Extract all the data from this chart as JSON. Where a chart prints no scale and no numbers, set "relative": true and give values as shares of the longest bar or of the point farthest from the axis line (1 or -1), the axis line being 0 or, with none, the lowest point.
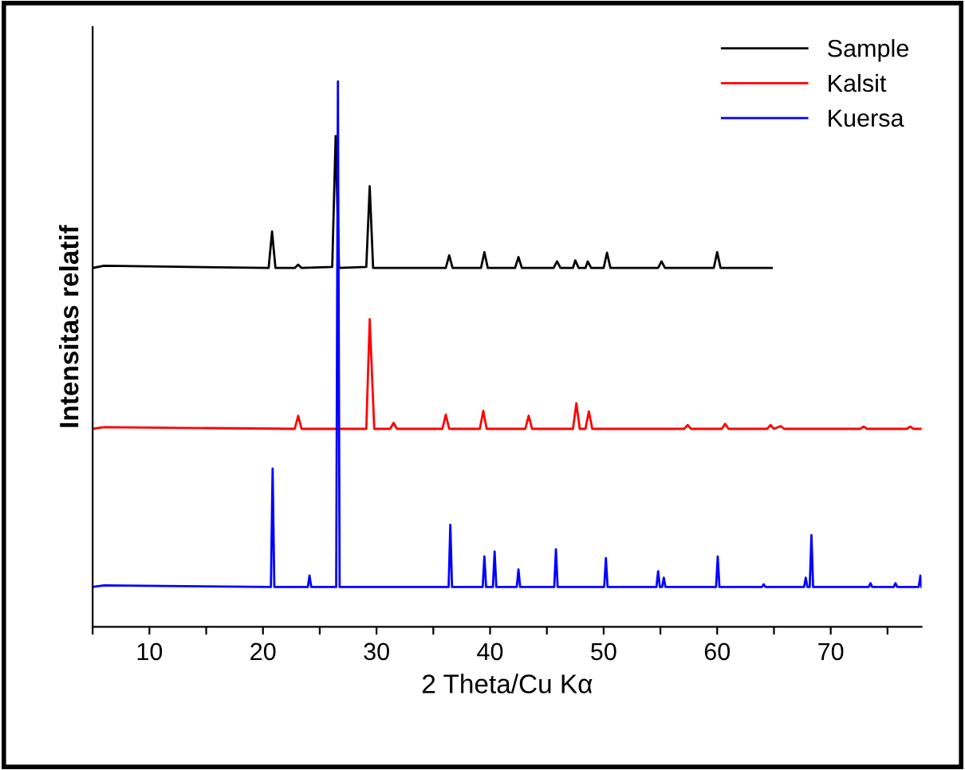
{
  "chart_data": {
    "type": "line",
    "relative": true,
    "xlabel": "2 Theta/Cu Kα",
    "ylabel": "Intensitas relatif",
    "xlim": [
      5,
      78
    ],
    "xticks": [
      {
        "value": 5,
        "label": null
      },
      10,
      {
        "value": 15,
        "label": null
      },
      20,
      {
        "value": 25,
        "label": null
      },
      30,
      {
        "value": 35,
        "label": null
      },
      40,
      {
        "value": 45,
        "label": null
      },
      50,
      {
        "value": 55,
        "label": null
      },
      60,
      {
        "value": 65,
        "label": null
      },
      70,
      {
        "value": 75,
        "label": null
      }
    ],
    "legend": "top right",
    "grid": false,
    "series": [
      {
        "name": "Sample",
        "color": "#000000",
        "x": [
          5,
          6,
          20.5,
          20.8,
          21.1,
          22.8,
          23.1,
          23.4,
          26.1,
          26.4,
          26.7,
          29.1,
          29.4,
          29.7,
          36.1,
          36.4,
          36.7,
          39.2,
          39.5,
          39.8,
          42.2,
          42.5,
          42.8,
          45.6,
          45.9,
          46.2,
          47.3,
          47.5,
          47.8,
          48.4,
          48.6,
          48.9,
          50.0,
          50.3,
          50.6,
          54.8,
          55.1,
          55.4,
          59.7,
          60.0,
          60.3,
          64.8
        ],
        "values": [
          0.658,
          0.662,
          0.658,
          0.725,
          0.658,
          0.658,
          0.664,
          0.658,
          0.66,
          0.9,
          0.658,
          0.66,
          0.808,
          0.658,
          0.658,
          0.681,
          0.658,
          0.658,
          0.687,
          0.658,
          0.658,
          0.678,
          0.658,
          0.658,
          0.67,
          0.658,
          0.658,
          0.672,
          0.658,
          0.658,
          0.67,
          0.658,
          0.658,
          0.686,
          0.658,
          0.658,
          0.67,
          0.658,
          0.658,
          0.687,
          0.658,
          0.658
        ]
      },
      {
        "name": "Kalsit",
        "color": "#ff0000",
        "x": [
          5,
          6,
          22.8,
          23.1,
          23.4,
          29.1,
          29.4,
          29.8,
          31.2,
          31.5,
          31.8,
          35.8,
          36.1,
          36.4,
          39.1,
          39.4,
          39.7,
          43.1,
          43.4,
          43.7,
          47.3,
          47.6,
          47.9,
          48.4,
          48.7,
          49.0,
          57.1,
          57.4,
          57.7,
          60.4,
          60.7,
          61.0,
          64.4,
          64.7,
          65.0,
          65.6,
          65.9,
          72.6,
          72.9,
          73.2,
          76.7,
          77.0,
          77.3,
          78
        ],
        "values": [
          0.363,
          0.366,
          0.363,
          0.387,
          0.363,
          0.363,
          0.564,
          0.363,
          0.363,
          0.374,
          0.363,
          0.363,
          0.389,
          0.363,
          0.363,
          0.396,
          0.363,
          0.363,
          0.387,
          0.363,
          0.363,
          0.41,
          0.363,
          0.363,
          0.395,
          0.363,
          0.363,
          0.37,
          0.363,
          0.363,
          0.372,
          0.363,
          0.363,
          0.37,
          0.363,
          0.368,
          0.363,
          0.363,
          0.367,
          0.363,
          0.363,
          0.367,
          0.363,
          0.363
        ]
      },
      {
        "name": "Kuersa",
        "color": "#0000ff",
        "x": [
          5,
          6,
          20.7,
          20.85,
          21.0,
          23.95,
          24.1,
          24.25,
          26.45,
          26.6,
          26.75,
          36.35,
          36.5,
          36.65,
          39.35,
          39.5,
          39.65,
          40.25,
          40.4,
          40.55,
          42.35,
          42.5,
          42.65,
          45.65,
          45.8,
          45.95,
          50.05,
          50.2,
          50.35,
          54.65,
          54.8,
          54.95,
          55.15,
          55.3,
          55.45,
          59.9,
          60.05,
          60.2,
          63.95,
          64.1,
          64.25,
          67.65,
          67.8,
          67.95,
          68.15,
          68.3,
          68.45,
          73.35,
          73.5,
          73.65,
          75.55,
          75.7,
          75.85,
          77.75,
          77.9,
          78
        ],
        "values": [
          0.073,
          0.076,
          0.073,
          0.29,
          0.073,
          0.073,
          0.094,
          0.073,
          0.073,
          1.0,
          0.073,
          0.073,
          0.187,
          0.073,
          0.073,
          0.129,
          0.073,
          0.073,
          0.138,
          0.073,
          0.073,
          0.105,
          0.073,
          0.073,
          0.142,
          0.073,
          0.073,
          0.126,
          0.073,
          0.073,
          0.102,
          0.073,
          0.073,
          0.09,
          0.073,
          0.073,
          0.129,
          0.073,
          0.073,
          0.078,
          0.073,
          0.073,
          0.09,
          0.073,
          0.073,
          0.168,
          0.073,
          0.073,
          0.08,
          0.073,
          0.073,
          0.08,
          0.073,
          0.073,
          0.094,
          0.073
        ]
      }
    ]
  }
}
